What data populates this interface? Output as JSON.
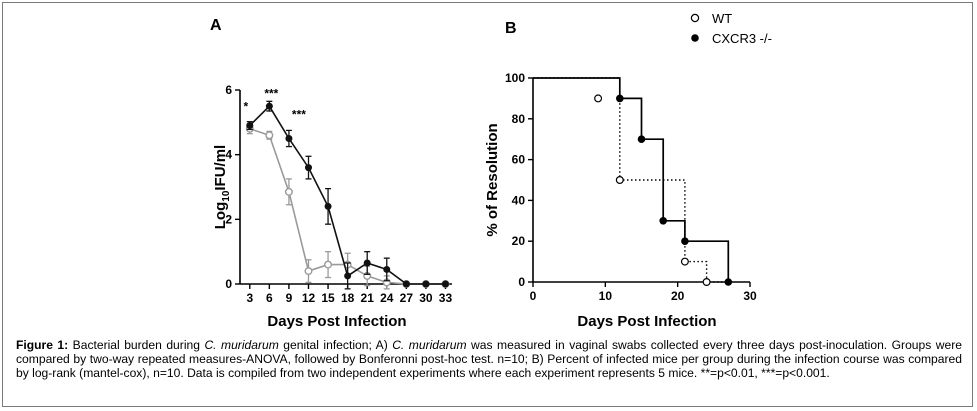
{
  "chart_data": [
    {
      "panel_label": "A",
      "type": "line",
      "xlabel": "Days Post Infection",
      "ylabel": "Log10IFU/ml",
      "ylabel_main": "Log",
      "ylabel_sub": "10",
      "ylabel_unit": "IFU/ml",
      "xlim": [
        1.5,
        34
      ],
      "ylim": [
        0,
        6
      ],
      "x_ticks": [
        "3",
        "6",
        "9",
        "12",
        "15",
        "18",
        "21",
        "24",
        "27",
        "30",
        "33"
      ],
      "y_ticks": [
        "0",
        "2",
        "4",
        "6"
      ],
      "series": [
        {
          "color": "#9a9a9a",
          "marker": "open-circle",
          "x": [
            3,
            6,
            9,
            12,
            15,
            18,
            21,
            24,
            27,
            30,
            33
          ],
          "y": [
            4.8,
            4.6,
            2.85,
            0.4,
            0.6,
            0.6,
            0.25,
            0.05,
            0,
            0,
            0
          ],
          "err": [
            0.15,
            0.12,
            0.4,
            0.35,
            0.4,
            0.35,
            0.3,
            0.2,
            0,
            0,
            0
          ]
        },
        {
          "color": "#111111",
          "marker": "filled-circle",
          "x": [
            3,
            6,
            9,
            12,
            15,
            18,
            21,
            24,
            27,
            30,
            33
          ],
          "y": [
            4.9,
            5.5,
            4.5,
            3.6,
            2.4,
            0.25,
            0.65,
            0.45,
            0,
            0,
            0
          ],
          "err": [
            0.12,
            0.15,
            0.25,
            0.35,
            0.55,
            0.4,
            0.35,
            0.35,
            0,
            0,
            0
          ]
        }
      ],
      "annotations": [
        {
          "text": "*",
          "x": 3,
          "y": 5.55
        },
        {
          "text": "***",
          "x": 6,
          "y": 5.95
        },
        {
          "text": "***",
          "x": 9,
          "y": 5.3
        }
      ]
    },
    {
      "panel_label": "B",
      "type": "line",
      "xlabel": "Days Post Infection",
      "ylabel": "% of Resolution",
      "xlim": [
        0,
        30
      ],
      "ylim": [
        0,
        100
      ],
      "x_ticks": [
        "0",
        "10",
        "20",
        "30"
      ],
      "y_ticks": [
        "0",
        "20",
        "40",
        "60",
        "80",
        "100"
      ],
      "legend": {
        "placement": "top",
        "entries": [
          {
            "label": "WT",
            "marker": "open-circle"
          },
          {
            "label": "CXCR3 -/-",
            "marker": "filled-circle"
          }
        ]
      },
      "series": [
        {
          "name": "WT",
          "style": "dotted-step",
          "marker": "open-circle",
          "step_x": [
            0,
            9,
            12,
            12,
            15,
            18,
            21,
            24,
            27
          ],
          "step_y": [
            100,
            100,
            90,
            50,
            50,
            50,
            10,
            0,
            0
          ],
          "markers_x": [
            9,
            12,
            21,
            24
          ],
          "markers_y": [
            90,
            50,
            10,
            0
          ]
        },
        {
          "name": "CXCR3 -/-",
          "style": "solid-step",
          "marker": "filled-circle",
          "step_x": [
            0,
            12,
            12,
            15,
            18,
            21,
            27,
            27
          ],
          "step_y": [
            100,
            100,
            90,
            70,
            30,
            20,
            20,
            0
          ],
          "markers_x": [
            12,
            15,
            18,
            21,
            27
          ],
          "markers_y": [
            90,
            70,
            30,
            20,
            0
          ]
        }
      ]
    }
  ],
  "caption": {
    "fig_label": "Figure 1:",
    "t1": " Bacterial burden during ",
    "i1": "C. muridarum",
    "t2": " genital infection; A) ",
    "i2": "C. muridarum",
    "t3": " was measured in vaginal swabs collected every three days post-inoculation. Groups were compared by two-way repeated measures-ANOVA, followed by Bonferonni post-hoc test. n=10; B) Percent of infected mice per group during the infection course was compared by log-rank (mantel-cox), n=10. Data is compiled from two independent experiments where each experiment represents 5 mice. **=p<0.01, ***=p<0.001."
  }
}
